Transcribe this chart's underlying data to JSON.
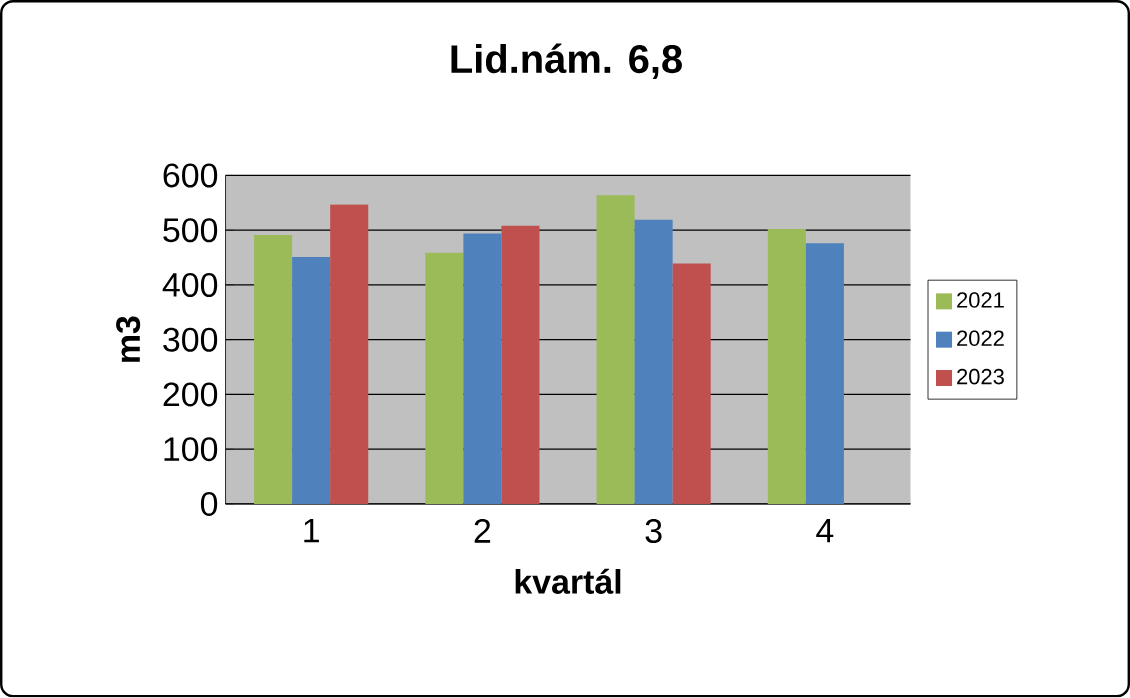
{
  "chart_data": {
    "type": "bar",
    "title": "Lid.nám. 6,8",
    "xlabel": "kvartál",
    "ylabel": "m3",
    "categories": [
      "1",
      "2",
      "3",
      "4"
    ],
    "series": [
      {
        "name": "2021",
        "color": "#9bbb59",
        "values": [
          491,
          459,
          564,
          502
        ]
      },
      {
        "name": "2022",
        "color": "#4f81bd",
        "values": [
          451,
          494,
          519,
          476
        ]
      },
      {
        "name": "2023",
        "color": "#c0504d",
        "values": [
          547,
          508,
          439,
          null
        ]
      }
    ],
    "ylim": [
      0,
      600
    ],
    "yticks": [
      0,
      100,
      200,
      300,
      400,
      500,
      600
    ],
    "grid": "y",
    "legend": "right"
  }
}
